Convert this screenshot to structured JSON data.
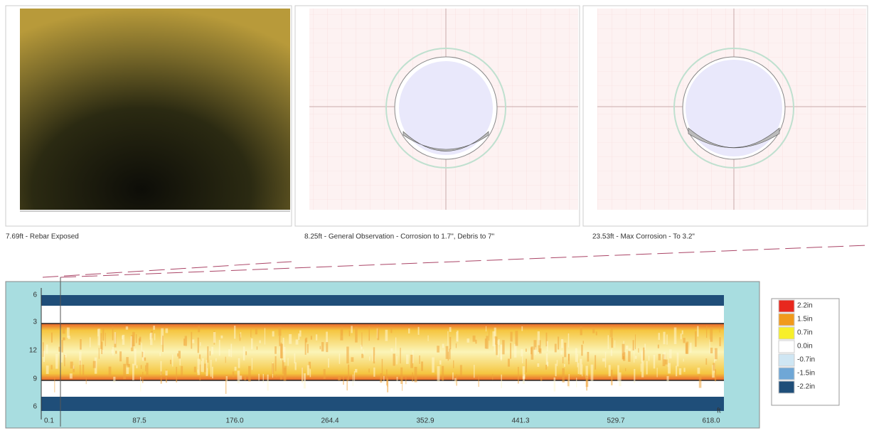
{
  "panels": [
    {
      "caption": "7.69ft - Rebar Exposed"
    },
    {
      "caption": "8.25ft - General Observation - Corrosion to 1.7\", Debris to 7\""
    },
    {
      "caption": "23.53ft - Max Corrosion - To 3.2\""
    }
  ],
  "profile": {
    "y_labels": [
      "6",
      "3",
      "12",
      "9",
      "6"
    ],
    "x_labels": [
      "0.1",
      "87.5",
      "176.0",
      "264.4",
      "352.9",
      "441.3",
      "529.7",
      "618.0"
    ],
    "x_unit": "ft"
  },
  "legend": [
    {
      "label": "2.2in",
      "color": "#e8281e"
    },
    {
      "label": "1.5in",
      "color": "#f19a1c"
    },
    {
      "label": "0.7in",
      "color": "#f7ef2a"
    },
    {
      "label": "0.0in",
      "color": "#ffffff"
    },
    {
      "label": "-0.7in",
      "color": "#cfe6f3"
    },
    {
      "label": "-1.5in",
      "color": "#6fa7d6"
    },
    {
      "label": "-2.2in",
      "color": "#1f4e79"
    }
  ]
}
